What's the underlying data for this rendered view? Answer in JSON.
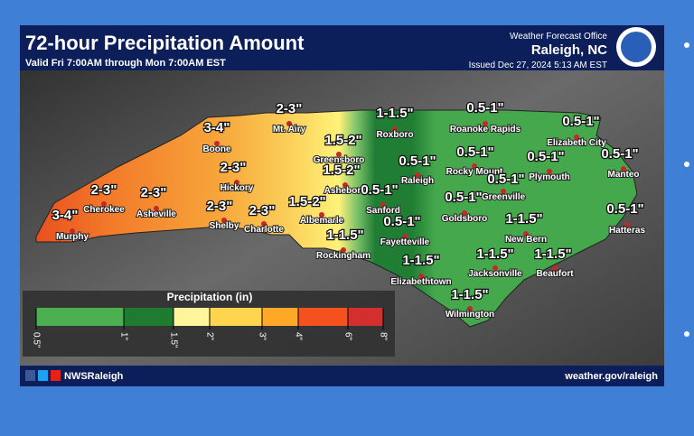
{
  "header": {
    "title": "72-hour Precipitation Amount",
    "subtitle": "Valid Fri 7:00AM through Mon 7:00AM EST",
    "office": "Weather Forecast Office",
    "location": "Raleigh, NC",
    "issued": "Issued Dec 27, 2024 5:13 AM EST"
  },
  "labels": [
    {
      "amount": "2-3\"",
      "city": "Mt. Airy"
    },
    {
      "amount": "3-4\"",
      "city": "Boone"
    },
    {
      "amount": "2-3\"",
      "city": "Hickory"
    },
    {
      "amount": "2-3\"",
      "city": "Cherokee"
    },
    {
      "amount": "2-3\"",
      "city": "Asheville"
    },
    {
      "amount": "2-3\"",
      "city": "Shelby"
    },
    {
      "amount": "2-3\"",
      "city": "Charlotte"
    },
    {
      "amount": "3-4\"",
      "city": "Murphy"
    },
    {
      "amount": "1.5-2\"",
      "city": "Greensboro"
    },
    {
      "amount": "1.5-2\"",
      "city": "Asheboro"
    },
    {
      "amount": "1.5-2\"",
      "city": "Albemarle"
    },
    {
      "amount": "1-1.5\"",
      "city": "Roxboro"
    },
    {
      "amount": "0.5-1\"",
      "city": "Roanoke Rapids"
    },
    {
      "amount": "0.5-1\"",
      "city": "Raleigh"
    },
    {
      "amount": "0.5-1\"",
      "city": "Rocky Mount"
    },
    {
      "amount": "0.5-1\"",
      "city": "Elizabeth City"
    },
    {
      "amount": "0.5-1\"",
      "city": "Plymouth"
    },
    {
      "amount": "0.5-1\"",
      "city": "Manteo"
    },
    {
      "amount": "0.5-1\"",
      "city": "Sanford"
    },
    {
      "amount": "0.5-1\"",
      "city": "Greenville"
    },
    {
      "amount": "0.5-1\"",
      "city": "Goldsboro"
    },
    {
      "amount": "0.5-1\"",
      "city": "Fayetteville"
    },
    {
      "amount": "1-1.5\"",
      "city": "Rockingham"
    },
    {
      "amount": "1-1.5\"",
      "city": "New Bern"
    },
    {
      "amount": "1-1.5\"",
      "city": "Jacksonville"
    },
    {
      "amount": "1-1.5\"",
      "city": "Beaufort"
    },
    {
      "amount": "1-1.5\"",
      "city": "Elizabethtown"
    },
    {
      "amount": "1-1.5\"",
      "city": "Wilmington"
    },
    {
      "amount": "0.5-1\"",
      "city": "Hatteras"
    }
  ],
  "legend": {
    "title": "Precipitation (in)",
    "ticks": [
      "0.5\"",
      "1\"",
      "1.5\"",
      "2\"",
      "3\"",
      "4\"",
      "6\"",
      "8\""
    ],
    "colors": [
      "#4caf50",
      "#1e7b30",
      "#fff59d",
      "#ffd54f",
      "#ffa726",
      "#f4511e",
      "#d32f2f"
    ]
  },
  "footer": {
    "handle": "NWSRaleigh",
    "url": "weather.gov/raleigh"
  }
}
